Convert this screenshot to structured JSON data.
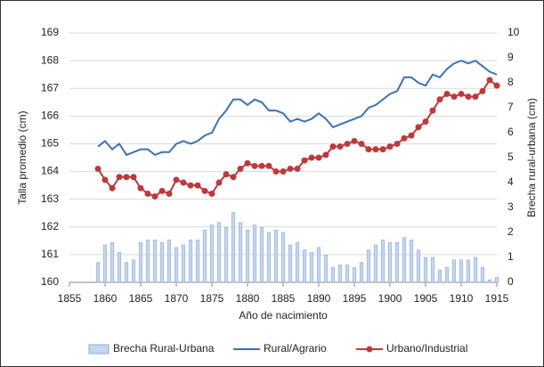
{
  "chart_data": {
    "type": "line",
    "x": [
      1859,
      1860,
      1861,
      1862,
      1863,
      1864,
      1865,
      1866,
      1867,
      1868,
      1869,
      1870,
      1871,
      1872,
      1873,
      1874,
      1875,
      1876,
      1877,
      1878,
      1879,
      1880,
      1881,
      1882,
      1883,
      1884,
      1885,
      1886,
      1887,
      1888,
      1889,
      1890,
      1891,
      1892,
      1893,
      1894,
      1895,
      1896,
      1897,
      1898,
      1899,
      1900,
      1901,
      1902,
      1903,
      1904,
      1905,
      1906,
      1907,
      1908,
      1909,
      1910,
      1911,
      1912,
      1913,
      1914,
      1915
    ],
    "xlim": [
      1855,
      1915
    ],
    "xticks": [
      1855,
      1860,
      1865,
      1870,
      1875,
      1880,
      1885,
      1890,
      1895,
      1900,
      1905,
      1910,
      1915
    ],
    "ylim": [
      160,
      169
    ],
    "yticks": [
      160,
      161,
      162,
      163,
      164,
      165,
      166,
      167,
      168,
      169
    ],
    "y2lim": [
      0,
      10
    ],
    "y2ticks": [
      0,
      1,
      2,
      3,
      4,
      5,
      6,
      7,
      8,
      9,
      10
    ],
    "x_label": "Año de nacimiento",
    "y_label": "Talla promedio (cm)",
    "y2_label": "Brecha rural-urbana (cm)",
    "grid": true,
    "legend": "bottom",
    "series": [
      {
        "name": "Brecha Rural-Urbana",
        "type": "bar",
        "axis": "y2",
        "color": "#c5d7ee",
        "values": [
          0.8,
          1.5,
          1.6,
          1.2,
          0.8,
          0.9,
          1.6,
          1.7,
          1.7,
          1.6,
          1.7,
          1.4,
          1.5,
          1.7,
          1.7,
          2.1,
          2.3,
          2.4,
          2.2,
          2.8,
          2.4,
          2.1,
          2.3,
          2.2,
          2.0,
          2.1,
          2.0,
          1.5,
          1.6,
          1.3,
          1.2,
          1.4,
          1.1,
          0.6,
          0.7,
          0.7,
          0.6,
          0.8,
          1.3,
          1.5,
          1.7,
          1.6,
          1.6,
          1.8,
          1.7,
          1.3,
          1.0,
          1.0,
          0.5,
          0.6,
          0.9,
          0.9,
          0.9,
          1.0,
          0.6,
          0.1,
          0.2
        ]
      },
      {
        "name": "Rural/Agrario",
        "type": "line",
        "color": "#3e72b2",
        "values": [
          164.9,
          165.1,
          164.8,
          165.0,
          164.6,
          164.7,
          164.8,
          164.8,
          164.6,
          164.7,
          164.7,
          165.0,
          165.1,
          165.0,
          165.1,
          165.3,
          165.4,
          165.9,
          166.2,
          166.6,
          166.6,
          166.4,
          166.6,
          166.5,
          166.2,
          166.2,
          166.1,
          165.8,
          165.9,
          165.8,
          165.9,
          166.1,
          165.9,
          165.6,
          165.7,
          165.8,
          165.9,
          166.0,
          166.3,
          166.4,
          166.6,
          166.8,
          166.9,
          167.4,
          167.4,
          167.2,
          167.1,
          167.5,
          167.4,
          167.7,
          167.9,
          168.0,
          167.9,
          168.0,
          167.8,
          167.6,
          167.5
        ]
      },
      {
        "name": "Urbano/Industrial",
        "type": "line",
        "markers": true,
        "color": "#bf393b",
        "values": [
          164.1,
          163.7,
          163.4,
          163.8,
          163.8,
          163.8,
          163.4,
          163.2,
          163.1,
          163.3,
          163.2,
          163.7,
          163.6,
          163.5,
          163.5,
          163.3,
          163.2,
          163.6,
          163.9,
          163.8,
          164.1,
          164.3,
          164.2,
          164.2,
          164.2,
          164.0,
          164.0,
          164.1,
          164.1,
          164.4,
          164.5,
          164.5,
          164.6,
          164.9,
          164.9,
          165.0,
          165.1,
          165.0,
          164.8,
          164.8,
          164.8,
          164.9,
          165.0,
          165.2,
          165.3,
          165.6,
          165.8,
          166.2,
          166.6,
          166.8,
          166.7,
          166.8,
          166.7,
          166.7,
          166.9,
          167.3,
          167.1
        ]
      }
    ]
  }
}
